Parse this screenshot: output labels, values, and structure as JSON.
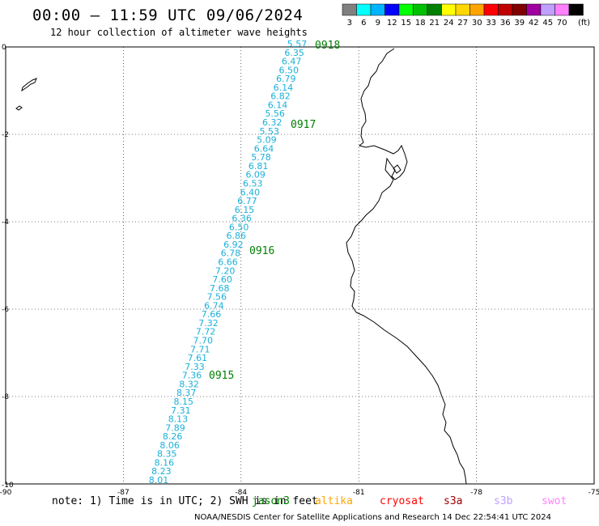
{
  "header": {
    "title": "00:00 – 11:59 UTC 09/06/2024",
    "subtitle": "12 hour collection of altimeter wave heights"
  },
  "legend": {
    "unit": "(ft)",
    "bins": [
      {
        "label": "3",
        "color": "#808080"
      },
      {
        "label": "6",
        "color": "#00ffff"
      },
      {
        "label": "9",
        "color": "#00b4ff"
      },
      {
        "label": "12",
        "color": "#0000ff"
      },
      {
        "label": "15",
        "color": "#00ff00"
      },
      {
        "label": "18",
        "color": "#00c000"
      },
      {
        "label": "21",
        "color": "#008000"
      },
      {
        "label": "24",
        "color": "#ffff00"
      },
      {
        "label": "27",
        "color": "#ffd700"
      },
      {
        "label": "30",
        "color": "#ffa500"
      },
      {
        "label": "33",
        "color": "#ff0000"
      },
      {
        "label": "36",
        "color": "#c00000"
      },
      {
        "label": "39",
        "color": "#800000"
      },
      {
        "label": "42",
        "color": "#a000a0"
      },
      {
        "label": "45",
        "color": "#c0a0ff"
      },
      {
        "label": "70",
        "color": "#ff80ff"
      },
      {
        "label": "",
        "color": "#000000"
      }
    ]
  },
  "map": {
    "lon_range": [
      -90,
      -75
    ],
    "lat_range": [
      -10,
      0
    ],
    "x_ticks": [
      "-90",
      "-87",
      "-84",
      "-81",
      "-78",
      "-75"
    ],
    "y_ticks": [
      "0",
      "-2",
      "-4",
      "-6",
      "-8",
      "-10"
    ],
    "day_labels": [
      "0918",
      "0917",
      "0916",
      "0915"
    ],
    "wave_heights": [
      "5.57",
      "6.35",
      "6.47",
      "6.50",
      "6.79",
      "6.14",
      "6.82",
      "6.14",
      "5.56",
      "6.32",
      "5.53",
      "5.09",
      "6.64",
      "5.78",
      "6.81",
      "6.09",
      "6.53",
      "6.40",
      "6.77",
      "6.15",
      "6.36",
      "6.50",
      "6.86",
      "6.92",
      "6.78",
      "6.66",
      "7.20",
      "7.60",
      "7.68",
      "7.56",
      "6.74",
      "7.66",
      "7.32",
      "7.72",
      "7.70",
      "7.71",
      "7.61",
      "7.33",
      "7.36",
      "8.32",
      "8.37",
      "8.15",
      "7.31",
      "8.13",
      "7.89",
      "8.26",
      "8.06",
      "8.35",
      "8.16",
      "8.23",
      "8.01"
    ],
    "track_color": "#1ab0d8",
    "day_color": "#008000"
  },
  "note": "note: 1) Time is in UTC; 2) SWH is in feet",
  "satellites": [
    {
      "name": "jason3",
      "color": "#008000"
    },
    {
      "name": "altika",
      "color": "#ffa500"
    },
    {
      "name": "cryosat",
      "color": "#ff0000"
    },
    {
      "name": "s3a",
      "color": "#a00000"
    },
    {
      "name": "s3b",
      "color": "#c0a0ff"
    },
    {
      "name": "swot",
      "color": "#ff80ff"
    }
  ],
  "footer": "NOAA/NESDIS Center for Satellite Applications and Research    14 Dec 22:54:41 UTC 2024"
}
